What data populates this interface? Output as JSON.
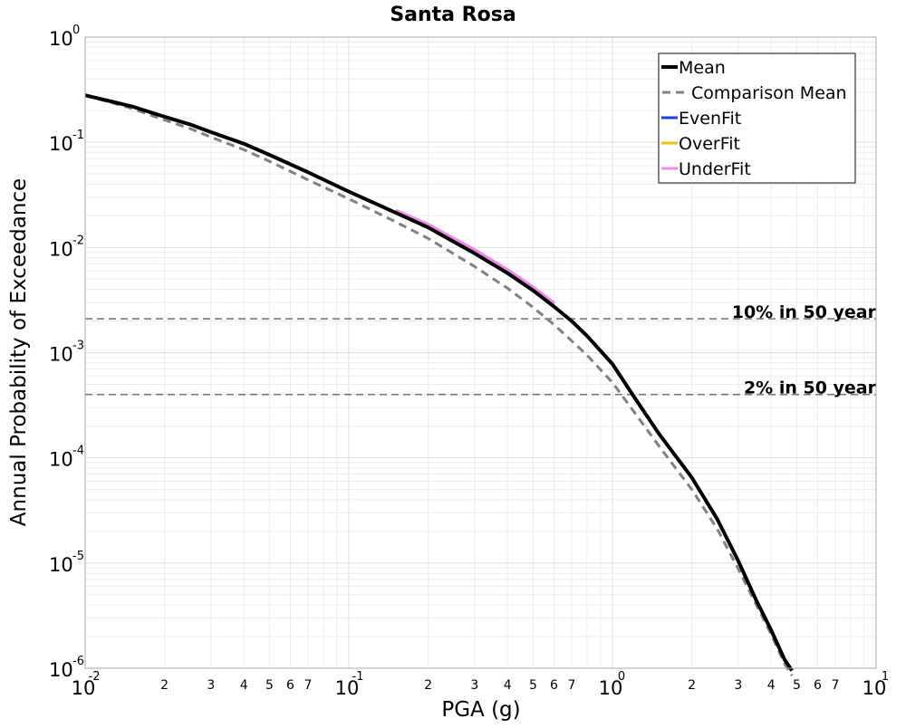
{
  "chart_data": {
    "type": "line",
    "title": "Santa Rosa",
    "xlabel": "PGA (g)",
    "ylabel": "Annual Probability of Exceedance",
    "x_scale": "log",
    "y_scale": "log",
    "xlim": [
      0.01,
      10
    ],
    "ylim": [
      1e-06,
      1
    ],
    "grid": true,
    "legend_position": "top-right",
    "x_major_ticks": [
      {
        "value": 0.01,
        "base": "10",
        "exp": "-2"
      },
      {
        "value": 0.1,
        "base": "10",
        "exp": "-1"
      },
      {
        "value": 1,
        "base": "10",
        "exp": "0"
      },
      {
        "value": 10,
        "base": "10",
        "exp": "1"
      }
    ],
    "x_minor_ticks": [
      {
        "value": 0.02,
        "label": "2"
      },
      {
        "value": 0.03,
        "label": "3"
      },
      {
        "value": 0.04,
        "label": "4"
      },
      {
        "value": 0.05,
        "label": "5"
      },
      {
        "value": 0.06,
        "label": "6"
      },
      {
        "value": 0.07,
        "label": "7"
      },
      {
        "value": 0.2,
        "label": "2"
      },
      {
        "value": 0.3,
        "label": "3"
      },
      {
        "value": 0.4,
        "label": "4"
      },
      {
        "value": 0.5,
        "label": "5"
      },
      {
        "value": 0.6,
        "label": "6"
      },
      {
        "value": 0.7,
        "label": "7"
      },
      {
        "value": 2,
        "label": "2"
      },
      {
        "value": 3,
        "label": "3"
      },
      {
        "value": 4,
        "label": "4"
      },
      {
        "value": 5,
        "label": "5"
      },
      {
        "value": 6,
        "label": "6"
      },
      {
        "value": 7,
        "label": "7"
      }
    ],
    "y_major_ticks": [
      {
        "value": 1,
        "base": "10",
        "exp": "0"
      },
      {
        "value": 0.1,
        "base": "10",
        "exp": "-1"
      },
      {
        "value": 0.01,
        "base": "10",
        "exp": "-2"
      },
      {
        "value": 0.001,
        "base": "10",
        "exp": "-3"
      },
      {
        "value": 0.0001,
        "base": "10",
        "exp": "-4"
      },
      {
        "value": 1e-05,
        "base": "10",
        "exp": "-5"
      },
      {
        "value": 1e-06,
        "base": "10",
        "exp": "-6"
      }
    ],
    "series": [
      {
        "name": "Mean",
        "color": "#000000",
        "style": "solid",
        "x": [
          0.01,
          0.015,
          0.02,
          0.025,
          0.03,
          0.04,
          0.05,
          0.07,
          0.1,
          0.15,
          0.2,
          0.3,
          0.4,
          0.5,
          0.6,
          0.7,
          0.8,
          1.0,
          1.2,
          1.5,
          2.0,
          2.5,
          3.0,
          3.5,
          4.0,
          4.5,
          4.8
        ],
        "y": [
          0.28,
          0.22,
          0.175,
          0.148,
          0.125,
          0.097,
          0.076,
          0.052,
          0.034,
          0.0215,
          0.0155,
          0.0088,
          0.0057,
          0.0039,
          0.00275,
          0.002,
          0.00145,
          0.00078,
          0.00039,
          0.00017,
          6.5e-05,
          2.6e-05,
          1.05e-05,
          4.5e-06,
          2.3e-06,
          1.2e-06,
          9.5e-07
        ]
      },
      {
        "name": "Comparison Mean",
        "color": "#808080",
        "style": "dashed",
        "x": [
          0.01,
          0.015,
          0.02,
          0.025,
          0.03,
          0.04,
          0.05,
          0.07,
          0.1,
          0.15,
          0.2,
          0.3,
          0.4,
          0.5,
          0.6,
          0.7,
          0.8,
          1.0,
          1.2,
          1.5,
          2.0,
          2.5,
          3.0,
          3.5,
          4.0,
          4.5,
          4.8
        ],
        "y": [
          0.28,
          0.21,
          0.163,
          0.135,
          0.112,
          0.085,
          0.066,
          0.044,
          0.029,
          0.0176,
          0.0122,
          0.0066,
          0.0041,
          0.0027,
          0.00185,
          0.0013,
          0.00095,
          0.00052,
          0.00028,
          0.00013,
          5e-05,
          2.1e-05,
          8.8e-06,
          4.1e-06,
          2.1e-06,
          1.1e-06,
          8.5e-07
        ]
      },
      {
        "name": "EvenFit",
        "color": "#1a3fe0",
        "style": "solid",
        "x": [],
        "y": []
      },
      {
        "name": "OverFit",
        "color": "#e8c410",
        "style": "solid",
        "x": [],
        "y": []
      },
      {
        "name": "UnderFit",
        "color": "#f08ae8",
        "style": "solid",
        "x": [
          0.15,
          0.2,
          0.3,
          0.4,
          0.5,
          0.6
        ],
        "y": [
          0.0222,
          0.0162,
          0.0093,
          0.006,
          0.0041,
          0.0029
        ]
      }
    ],
    "reference_lines": [
      {
        "label": "10% in 50 year",
        "y": 0.0021
      },
      {
        "label": "2% in 50 year",
        "y": 0.0004
      }
    ]
  }
}
